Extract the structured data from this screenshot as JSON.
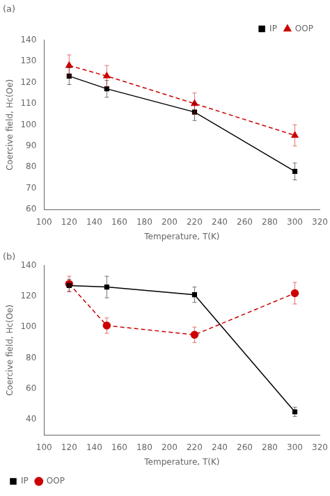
{
  "chart_data": [
    {
      "type": "line",
      "annotation": "(a)",
      "xlabel": "Temperature, T(K)",
      "ylabel": "Coercive field, Hc(Oe)",
      "x": [
        120,
        150,
        220,
        300
      ],
      "series": [
        {
          "name": "IP",
          "color": "#000000",
          "marker": "square",
          "line_style": "solid",
          "values": [
            123,
            117,
            106,
            78
          ],
          "yerr": [
            4,
            4,
            4,
            4
          ]
        },
        {
          "name": "OOP",
          "color": "#cc0000",
          "marker": "triangle",
          "line_style": "dashed",
          "values": [
            128,
            123,
            110,
            95
          ],
          "yerr": [
            5,
            5,
            5,
            5
          ]
        }
      ],
      "xlim": [
        100,
        320
      ],
      "xticks": [
        100,
        120,
        140,
        160,
        180,
        200,
        220,
        240,
        260,
        280,
        300,
        320
      ],
      "ylim": [
        60,
        140
      ],
      "yticks": [
        60,
        70,
        80,
        90,
        100,
        110,
        120,
        130,
        140
      ],
      "legend": "upper right",
      "grid": false
    },
    {
      "type": "line",
      "annotation": "(b)",
      "xlabel": "Temperature, T(K)",
      "ylabel": "Coercive field, Hc(Oe)",
      "x": [
        120,
        150,
        220,
        300
      ],
      "series": [
        {
          "name": "IP",
          "color": "#000000",
          "marker": "square",
          "line_style": "solid",
          "values": [
            127,
            126,
            121,
            45
          ],
          "yerr": [
            4,
            7,
            5,
            3
          ]
        },
        {
          "name": "OOP",
          "color": "#cc0000",
          "marker": "circle",
          "line_style": "dashed",
          "values": [
            128,
            101,
            95,
            122
          ],
          "yerr": [
            5,
            5,
            5,
            7
          ]
        }
      ],
      "xlim": [
        100,
        320
      ],
      "xticks": [
        100,
        120,
        140,
        160,
        180,
        200,
        220,
        240,
        260,
        280,
        300,
        320
      ],
      "ylim": [
        30,
        140
      ],
      "yticks": [
        40,
        60,
        80,
        100,
        120,
        140
      ],
      "legend": "lower left",
      "grid": false
    }
  ]
}
